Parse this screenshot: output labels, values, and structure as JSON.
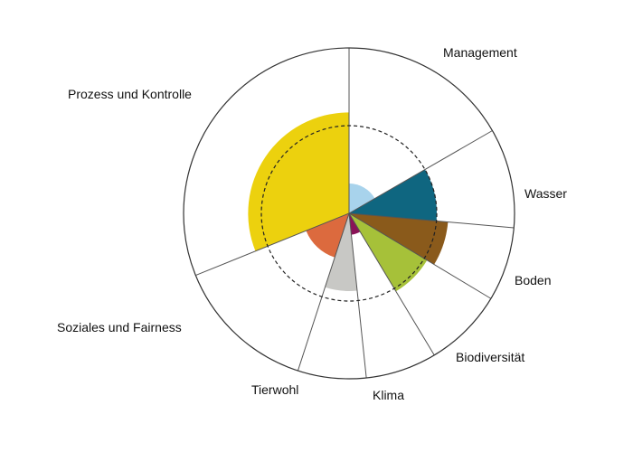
{
  "chart_data": {
    "type": "polar-area",
    "title": "",
    "max": 100,
    "reference_value": 53,
    "reference_style": "dashed circle",
    "categories": [
      {
        "name": "Management",
        "start": 0,
        "end": 60,
        "value": 18,
        "color": "#a8d3ec"
      },
      {
        "name": "Wasser",
        "start": 60,
        "end": 95,
        "value": 53,
        "color": "#0f6680"
      },
      {
        "name": "Boden",
        "start": 95,
        "end": 121,
        "value": 60,
        "color": "#8a5a1b"
      },
      {
        "name": "Biodiversität",
        "start": 121,
        "end": 149,
        "value": 55,
        "color": "#a6c139"
      },
      {
        "name": "Klima",
        "start": 149,
        "end": 174,
        "value": 13,
        "color": "#8a1357"
      },
      {
        "name": "Tierwohl",
        "start": 174,
        "end": 198,
        "value": 47,
        "color": "#c8c8c5"
      },
      {
        "name": "Soziales und Fairness",
        "start": 198,
        "end": 248,
        "value": 28,
        "color": "#dc6a3e"
      },
      {
        "name": "Prozess und Kontrolle",
        "start": 248,
        "end": 360,
        "value": 61,
        "color": "#ecd10e"
      }
    ]
  }
}
